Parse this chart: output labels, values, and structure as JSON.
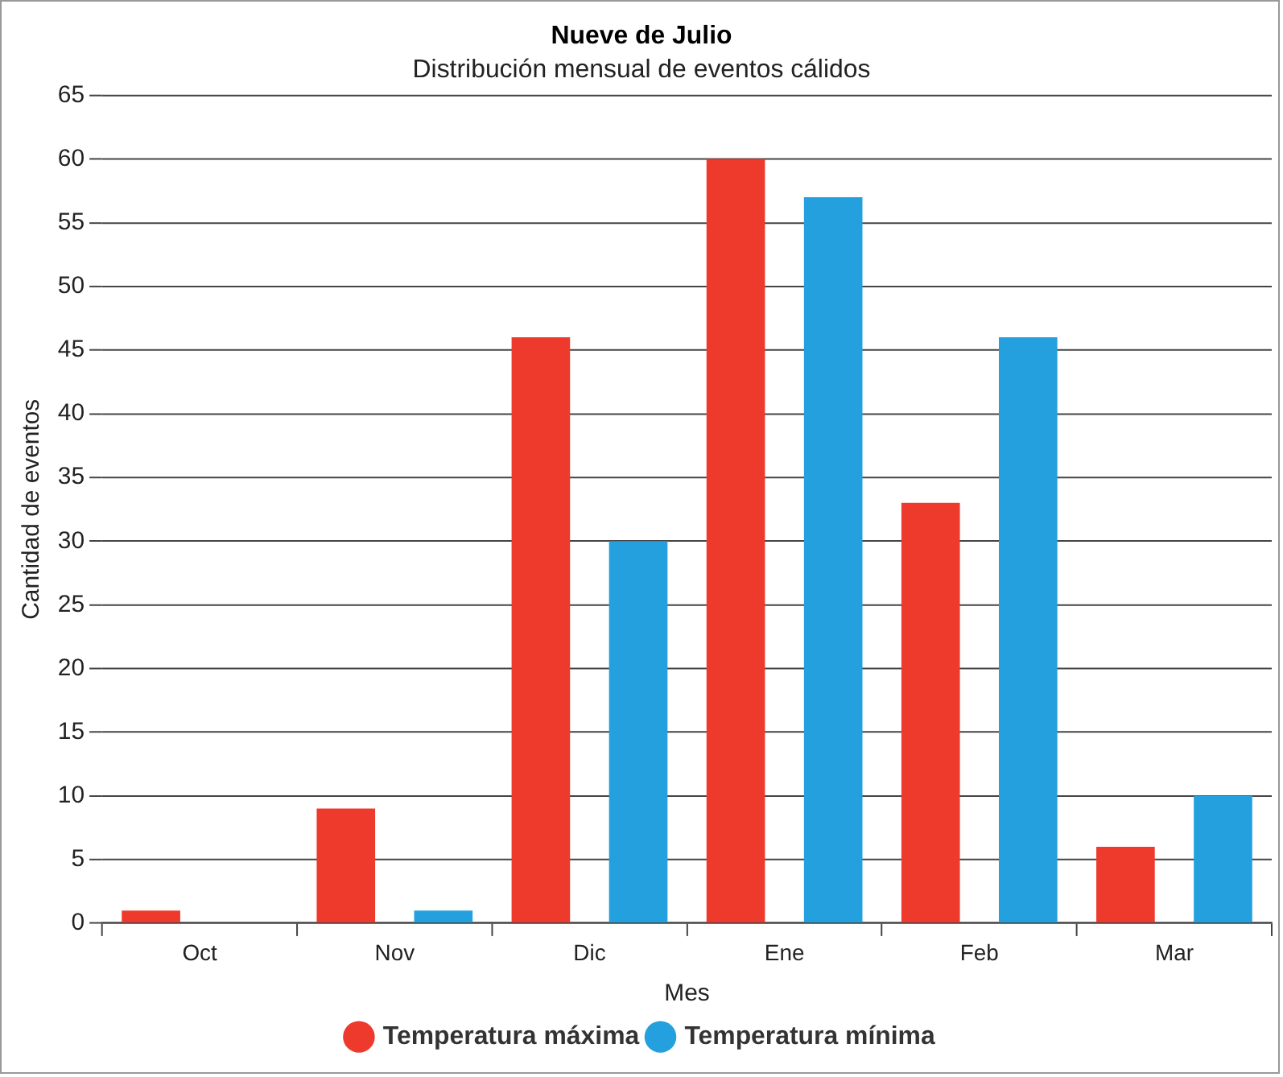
{
  "chart_data": {
    "type": "bar",
    "title": "Nueve de Julio",
    "subtitle": "Distribución mensual de eventos cálidos",
    "xlabel": "Mes",
    "ylabel": "Cantidad de eventos",
    "categories": [
      "Oct",
      "Nov",
      "Dic",
      "Ene",
      "Feb",
      "Mar"
    ],
    "series": [
      {
        "name": "Temperatura máxima",
        "color": "#ee3a2c",
        "values": [
          1,
          9,
          46,
          60,
          33,
          6
        ]
      },
      {
        "name": "Temperatura mínima",
        "color": "#23a0dd",
        "values": [
          0,
          1,
          30,
          57,
          46,
          10
        ]
      }
    ],
    "ylim": [
      0,
      65
    ],
    "yticks": [
      0,
      5,
      10,
      15,
      20,
      25,
      30,
      35,
      40,
      45,
      50,
      55,
      60,
      65
    ],
    "grid": "y",
    "legend": "bottom"
  }
}
